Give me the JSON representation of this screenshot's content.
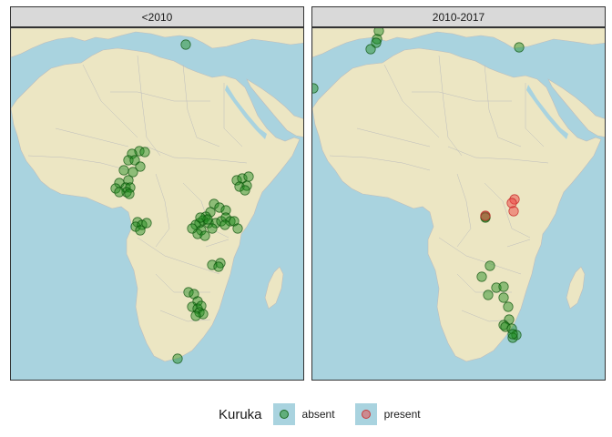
{
  "panels": [
    {
      "title": "<2010",
      "points": [
        [
          203,
          48
        ],
        [
          152,
          165
        ],
        [
          144,
          168
        ],
        [
          158,
          166
        ],
        [
          140,
          175
        ],
        [
          147,
          175
        ],
        [
          153,
          182
        ],
        [
          145,
          188
        ],
        [
          135,
          186
        ],
        [
          140,
          197
        ],
        [
          130,
          200
        ],
        [
          126,
          206
        ],
        [
          137,
          205
        ],
        [
          142,
          205
        ],
        [
          138,
          210
        ],
        [
          130,
          210
        ],
        [
          141,
          212
        ],
        [
          259,
          197
        ],
        [
          265,
          195
        ],
        [
          272,
          193
        ],
        [
          262,
          204
        ],
        [
          270,
          203
        ],
        [
          268,
          208
        ],
        [
          234,
          223
        ],
        [
          240,
          227
        ],
        [
          247,
          230
        ],
        [
          230,
          232
        ],
        [
          225,
          237
        ],
        [
          222,
          241
        ],
        [
          218,
          244
        ],
        [
          214,
          246
        ],
        [
          228,
          244
        ],
        [
          236,
          244
        ],
        [
          242,
          242
        ],
        [
          247,
          238
        ],
        [
          252,
          242
        ],
        [
          220,
          252
        ],
        [
          216,
          256
        ],
        [
          224,
          258
        ],
        [
          210,
          250
        ],
        [
          232,
          250
        ],
        [
          246,
          246
        ],
        [
          256,
          242
        ],
        [
          260,
          250
        ],
        [
          227,
          240
        ],
        [
          219,
          238
        ],
        [
          150,
          243
        ],
        [
          148,
          248
        ],
        [
          155,
          246
        ],
        [
          160,
          244
        ],
        [
          153,
          252
        ],
        [
          232,
          290
        ],
        [
          241,
          288
        ],
        [
          239,
          292
        ],
        [
          206,
          320
        ],
        [
          212,
          322
        ],
        [
          216,
          330
        ],
        [
          210,
          336
        ],
        [
          216,
          338
        ],
        [
          220,
          335
        ],
        [
          218,
          342
        ],
        [
          222,
          344
        ],
        [
          214,
          346
        ],
        [
          194,
          393
        ]
      ],
      "status": "absent"
    },
    {
      "title": "2010-2017",
      "points": [
        [
          415,
          33
        ],
        [
          413,
          42
        ],
        [
          412,
          46
        ],
        [
          406,
          53
        ],
        [
          569,
          51
        ],
        [
          343,
          96
        ],
        [
          532,
          237
        ],
        [
          532,
          238
        ],
        [
          528,
          303
        ],
        [
          537,
          291
        ],
        [
          535,
          323
        ],
        [
          544,
          315
        ],
        [
          552,
          314
        ],
        [
          552,
          326
        ],
        [
          557,
          336
        ],
        [
          558,
          350
        ],
        [
          552,
          356
        ],
        [
          554,
          358
        ],
        [
          561,
          360
        ],
        [
          566,
          367
        ],
        [
          562,
          370
        ],
        [
          562,
          366
        ]
      ],
      "present_points": [
        [
          564,
          218
        ],
        [
          561,
          222
        ],
        [
          563,
          231
        ],
        [
          532,
          236
        ]
      ],
      "status": "absent"
    }
  ],
  "legend": {
    "title": "Kuruka",
    "items": [
      {
        "label": "absent",
        "color": "#1a8a1a"
      },
      {
        "label": "present",
        "color": "#ee4444"
      }
    ]
  },
  "colors": {
    "ocean": "#a9d3df",
    "land": "#ece6c3",
    "border": "#bdbdbd",
    "absent": "#1a8a1a",
    "present": "#ee4444"
  }
}
